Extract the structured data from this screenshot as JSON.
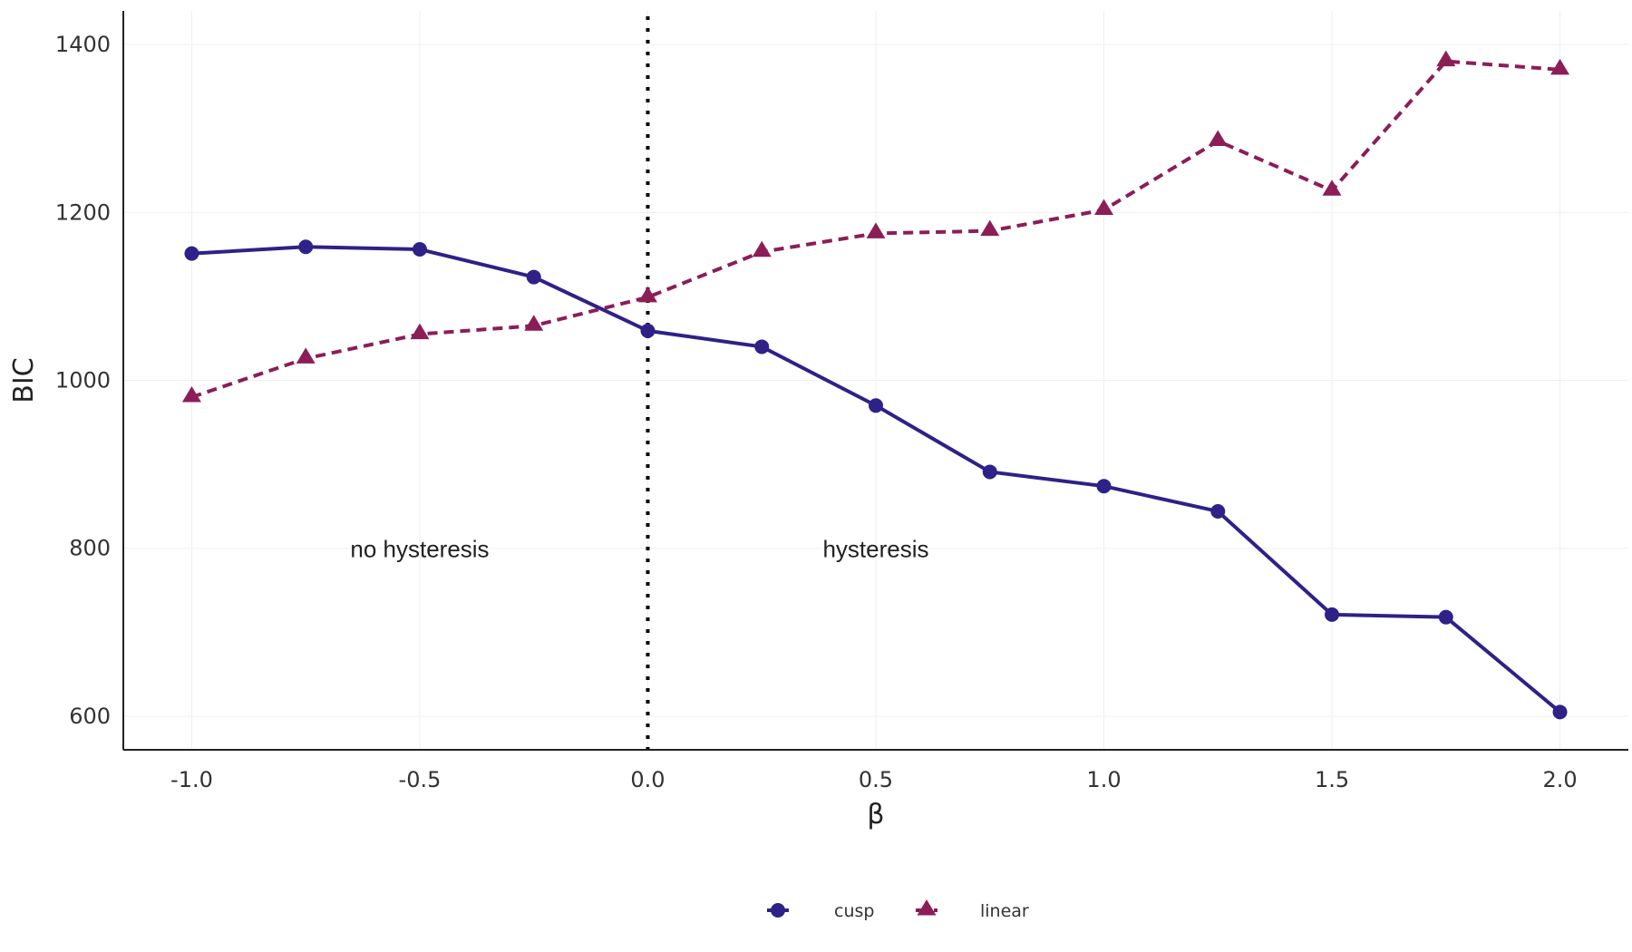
{
  "chart_data": {
    "type": "line",
    "title": "",
    "xlabel": "β",
    "ylabel": "BIC",
    "xlim": [
      -1.15,
      2.15
    ],
    "ylim": [
      560,
      1440
    ],
    "xticks": [
      -1.0,
      -0.5,
      0.0,
      0.5,
      1.0,
      1.5,
      2.0
    ],
    "xtick_labels": [
      "-1.0",
      "-0.5",
      "0.0",
      "0.5",
      "1.0",
      "1.5",
      "2.0"
    ],
    "yticks": [
      600,
      800,
      1000,
      1200,
      1400
    ],
    "ytick_labels": [
      "600",
      "800",
      "1000",
      "1200",
      "1400"
    ],
    "grid": true,
    "vline": {
      "x": 0.0,
      "style": "dotted"
    },
    "annotations": [
      {
        "text": "no hysteresis",
        "x": -0.5,
        "y": 800
      },
      {
        "text": "hysteresis",
        "x": 0.5,
        "y": 800
      }
    ],
    "series": [
      {
        "name": "cusp",
        "color": "#2e2188",
        "marker": "circle",
        "line": "solid",
        "x": [
          -1.0,
          -0.75,
          -0.5,
          -0.25,
          0.0,
          0.25,
          0.5,
          0.75,
          1.0,
          1.25,
          1.5,
          1.75,
          2.0
        ],
        "values": [
          1151,
          1159,
          1156,
          1123,
          1059,
          1040,
          970,
          891,
          874,
          844,
          721,
          718,
          605
        ]
      },
      {
        "name": "linear",
        "color": "#8b1e57",
        "marker": "triangle",
        "line": "dashed",
        "x": [
          -1.0,
          -0.75,
          -0.5,
          -0.25,
          0.0,
          0.25,
          0.5,
          0.75,
          1.0,
          1.25,
          1.5,
          1.75,
          2.0
        ],
        "values": [
          980,
          1026,
          1055,
          1065,
          1099,
          1153,
          1175,
          1178,
          1203,
          1285,
          1226,
          1380,
          1370
        ]
      }
    ],
    "legend": {
      "position": "bottom",
      "entries": [
        "cusp",
        "linear"
      ]
    }
  }
}
